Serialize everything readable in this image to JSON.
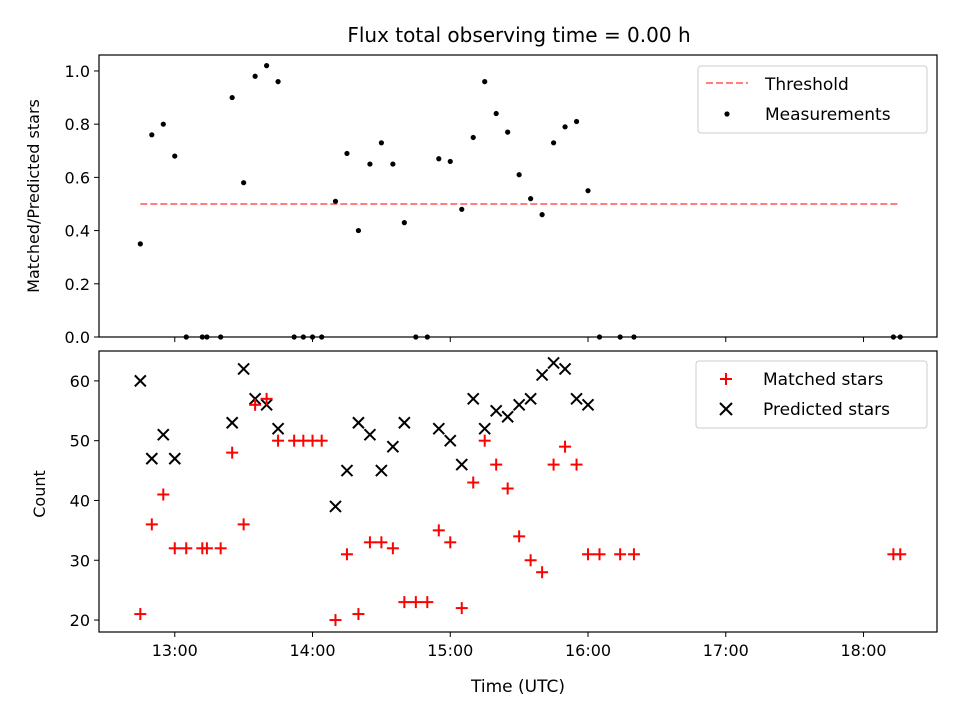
{
  "figure": {
    "title": "Flux total observing time = 0.00 h"
  },
  "colors": {
    "threshold": "#ff7f7f",
    "measurement": "#000000",
    "matched": "#ff0000",
    "predicted": "#000000"
  },
  "chart_data": [
    {
      "type": "scatter",
      "ylabel": "Matched/Predicted stars",
      "xlim": [
        "12:27",
        "18:32"
      ],
      "ylim": [
        0,
        1.06
      ],
      "yticks": [
        0.0,
        0.2,
        0.4,
        0.6,
        0.8,
        1.0
      ],
      "ytick_labels": [
        "0.0",
        "0.2",
        "0.4",
        "0.6",
        "0.8",
        "1.0"
      ],
      "grid": false,
      "legend": "upper right",
      "threshold": {
        "name": "Threshold",
        "y": 0.5,
        "x_from": "12:45",
        "x_to": "18:15",
        "style": "dashed"
      },
      "series": [
        {
          "name": "Measurements",
          "x": [
            "12:45",
            "12:50",
            "12:55",
            "13:00",
            "13:05",
            "13:12",
            "13:14",
            "13:20",
            "13:25",
            "13:30",
            "13:35",
            "13:40",
            "13:45",
            "13:52",
            "13:56",
            "14:00",
            "14:04",
            "14:10",
            "14:15",
            "14:20",
            "14:25",
            "14:30",
            "14:35",
            "14:40",
            "14:45",
            "14:50",
            "14:55",
            "15:00",
            "15:05",
            "15:10",
            "15:15",
            "15:20",
            "15:25",
            "15:30",
            "15:35",
            "15:40",
            "15:45",
            "15:50",
            "15:55",
            "16:00",
            "16:05",
            "16:14",
            "16:20",
            "18:13",
            "18:16"
          ],
          "y": [
            0.35,
            0.76,
            0.8,
            0.68,
            0.0,
            0.0,
            0.0,
            0.0,
            0.9,
            0.58,
            0.98,
            1.02,
            0.96,
            0.0,
            0.0,
            0.0,
            0.0,
            0.51,
            0.69,
            0.4,
            0.65,
            0.73,
            0.65,
            0.43,
            0.0,
            0.0,
            0.67,
            0.66,
            0.48,
            0.75,
            0.96,
            0.84,
            0.77,
            0.61,
            0.52,
            0.46,
            0.73,
            0.79,
            0.81,
            0.55,
            0.0,
            0.0,
            0.0,
            0.0,
            0.0
          ]
        }
      ]
    },
    {
      "type": "scatter",
      "xlabel": "Time (UTC)",
      "ylabel": "Count",
      "xlim": [
        "12:27",
        "18:32"
      ],
      "ylim": [
        18,
        65
      ],
      "yticks": [
        20,
        30,
        40,
        50,
        60
      ],
      "ytick_labels": [
        "20",
        "30",
        "40",
        "50",
        "60"
      ],
      "xticks": [
        "13:00",
        "14:00",
        "15:00",
        "16:00",
        "17:00",
        "18:00"
      ],
      "xtick_labels": [
        "13:00",
        "14:00",
        "15:00",
        "16:00",
        "17:00",
        "18:00"
      ],
      "grid": false,
      "legend": "upper right",
      "series": [
        {
          "name": "Matched stars",
          "marker": "plus",
          "x": [
            "12:45",
            "12:50",
            "12:55",
            "13:00",
            "13:05",
            "13:12",
            "13:14",
            "13:20",
            "13:25",
            "13:30",
            "13:35",
            "13:40",
            "13:45",
            "13:52",
            "13:56",
            "14:00",
            "14:04",
            "14:10",
            "14:15",
            "14:20",
            "14:25",
            "14:30",
            "14:35",
            "14:40",
            "14:45",
            "14:50",
            "14:55",
            "15:00",
            "15:05",
            "15:10",
            "15:15",
            "15:20",
            "15:25",
            "15:30",
            "15:35",
            "15:40",
            "15:45",
            "15:50",
            "15:55",
            "16:00",
            "16:05",
            "16:14",
            "16:20",
            "18:13",
            "18:16"
          ],
          "y": [
            21,
            36,
            41,
            32,
            32,
            32,
            32,
            32,
            48,
            36,
            56,
            57,
            50,
            50,
            50,
            50,
            50,
            20,
            31,
            21,
            33,
            33,
            32,
            23,
            23,
            23,
            35,
            33,
            22,
            43,
            50,
            46,
            42,
            34,
            30,
            28,
            46,
            49,
            46,
            31,
            31,
            31,
            31,
            31,
            31
          ]
        },
        {
          "name": "Predicted stars",
          "marker": "x",
          "x": [
            "12:45",
            "12:50",
            "12:55",
            "13:00",
            "13:25",
            "13:30",
            "13:35",
            "13:40",
            "13:45",
            "14:10",
            "14:15",
            "14:20",
            "14:25",
            "14:30",
            "14:35",
            "14:40",
            "14:55",
            "15:00",
            "15:05",
            "15:10",
            "15:15",
            "15:20",
            "15:25",
            "15:30",
            "15:35",
            "15:40",
            "15:45",
            "15:50",
            "15:55",
            "16:00"
          ],
          "y": [
            60,
            47,
            51,
            47,
            53,
            62,
            57,
            56,
            52,
            39,
            45,
            53,
            51,
            45,
            49,
            53,
            52,
            50,
            46,
            57,
            52,
            55,
            54,
            56,
            57,
            61,
            63,
            62,
            57,
            56
          ]
        }
      ]
    }
  ]
}
